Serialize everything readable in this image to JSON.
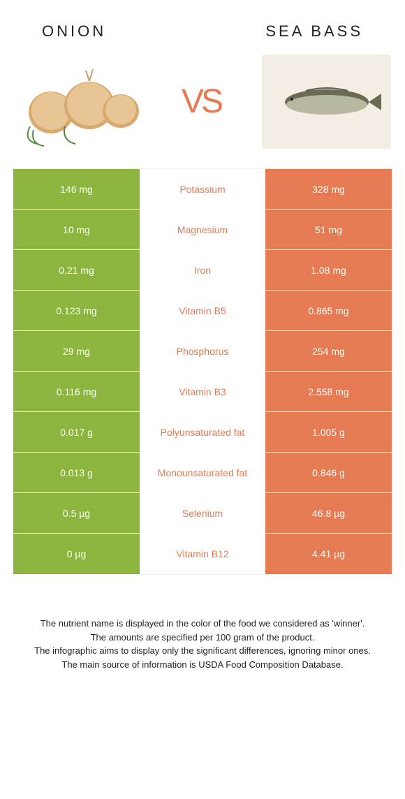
{
  "left_title": "ONION",
  "right_title": "SEA BASS",
  "vs_text_v": "V",
  "vs_text_s": "S",
  "colors": {
    "left_bar": "#8bb53f",
    "right_bar": "#e67a52",
    "mid_text": "#e67a52",
    "left_text": "#ffffff",
    "right_text": "#ffffff"
  },
  "rows": [
    {
      "left": "146 mg",
      "mid": "Potassium",
      "right": "328 mg"
    },
    {
      "left": "10 mg",
      "mid": "Magnesium",
      "right": "51 mg"
    },
    {
      "left": "0.21 mg",
      "mid": "Iron",
      "right": "1.08 mg"
    },
    {
      "left": "0.123 mg",
      "mid": "Vitamin B5",
      "right": "0.865 mg"
    },
    {
      "left": "29 mg",
      "mid": "Phosphorus",
      "right": "254 mg"
    },
    {
      "left": "0.116 mg",
      "mid": "Vitamin B3",
      "right": "2.558 mg"
    },
    {
      "left": "0.017 g",
      "mid": "Polyunsaturated fat",
      "right": "1.005 g"
    },
    {
      "left": "0.013 g",
      "mid": "Monounsaturated fat",
      "right": "0.846 g"
    },
    {
      "left": "0.5 µg",
      "mid": "Selenium",
      "right": "46.8 µg"
    },
    {
      "left": "0 µg",
      "mid": "Vitamin B12",
      "right": "4.41 µg"
    }
  ],
  "footer_lines": [
    "The nutrient name is displayed in the color of the food we considered as 'winner'.",
    "The amounts are specified per 100 gram of the product.",
    "The infographic aims to display only the significant differences, ignoring minor ones.",
    "The main source of information is USDA Food Composition Database."
  ]
}
